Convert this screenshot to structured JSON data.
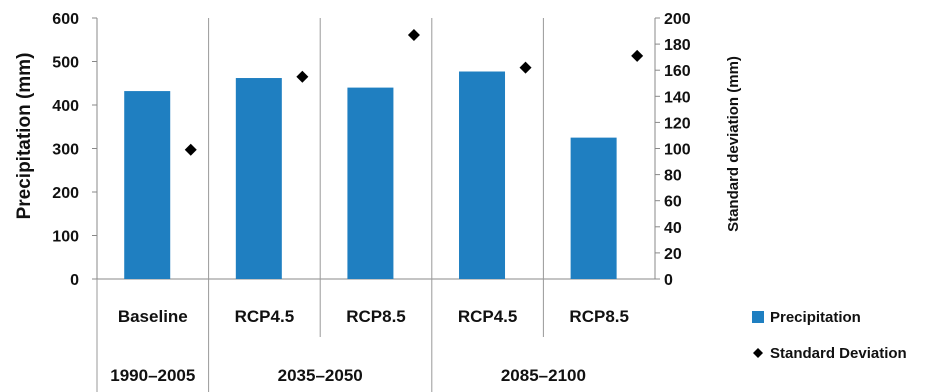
{
  "chart_data": {
    "type": "bar",
    "categories": [
      "Baseline",
      "RCP4.5",
      "RCP8.5",
      "RCP4.5",
      "RCP8.5"
    ],
    "period_groups": [
      {
        "label": "1990–2005",
        "span": 1
      },
      {
        "label": "2035–2050",
        "span": 2
      },
      {
        "label": "2085–2100",
        "span": 2
      }
    ],
    "series": [
      {
        "name": "Precipitation",
        "axis": "left",
        "kind": "bar",
        "color": "#1f7fc1",
        "values": [
          432,
          462,
          440,
          477,
          325
        ]
      },
      {
        "name": "Standard Deviation",
        "axis": "right",
        "kind": "marker",
        "marker": "diamond",
        "color": "#000000",
        "values": [
          99,
          155,
          187,
          162,
          171
        ]
      }
    ],
    "ylabel": "Precipitation (mm)",
    "ylabel_right": "Standard deviation (mm)",
    "ylim": [
      0,
      600
    ],
    "yticks": [
      0,
      100,
      200,
      300,
      400,
      500,
      600
    ],
    "ylim_right": [
      0,
      200
    ],
    "yticks_right": [
      0,
      20,
      40,
      60,
      80,
      100,
      120,
      140,
      160,
      180,
      200
    ],
    "grid": false,
    "legend_position": "bottom-right"
  }
}
